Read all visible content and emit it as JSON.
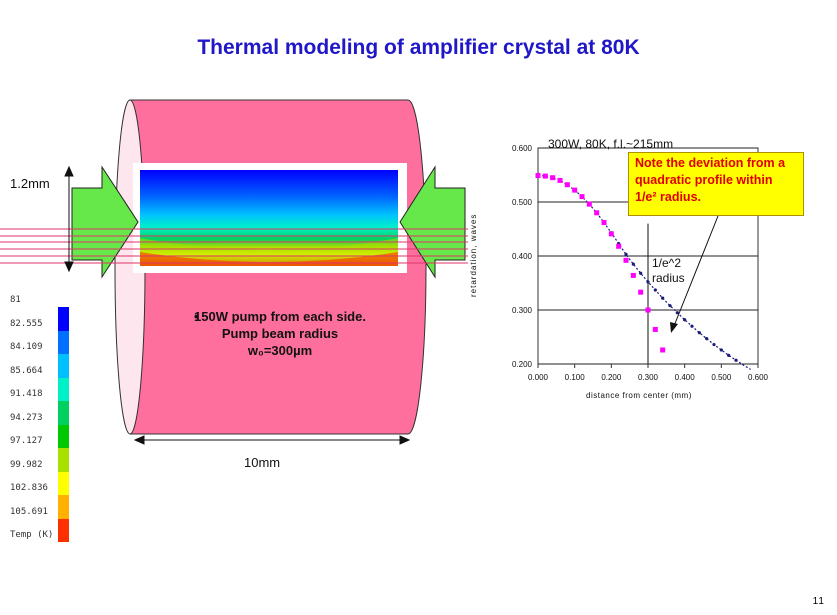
{
  "slide": {
    "title": "Thermal modeling of amplifier crystal at 80K",
    "page_number": "11"
  },
  "diagram": {
    "height_label": "1.2mm",
    "length_label": "10mm",
    "bullet": "150W pump from each side. Pump beam radius w₀=300µm",
    "colors": {
      "cylinder": "#ff6f9e",
      "cylinder_end": "#fde6ee",
      "pump": "#66e84a",
      "beam": "#e0336a"
    },
    "legend": {
      "labels": [
        "81",
        "82.555",
        "84.109",
        "85.664",
        "91.418",
        "94.273",
        "97.127",
        "99.982",
        "102.836",
        "105.691",
        "Temp (K)"
      ],
      "colors": [
        "#0000ff",
        "#0070ff",
        "#00bfff",
        "#00f0c8",
        "#00d060",
        "#00c800",
        "#a8e000",
        "#ffff00",
        "#ffb000",
        "#ff3000"
      ]
    }
  },
  "chart_data": {
    "type": "scatter",
    "title": "300W, 80K, f.l.~215mm",
    "xlabel": "distance from center (mm)",
    "ylabel": "retardation, waves",
    "xlim": [
      0.0,
      0.6
    ],
    "ylim": [
      0.2,
      0.6
    ],
    "x_ticks": [
      "0.000",
      "0.100",
      "0.200",
      "0.300",
      "0.400",
      "0.500",
      "0.600"
    ],
    "y_ticks": [
      "0.200",
      "0.300",
      "0.400",
      "0.500",
      "0.600"
    ],
    "grid": "horizontal",
    "series": [
      {
        "style": "dark blue dotted line",
        "color": "#1a1a7a",
        "x": [
          0.0,
          0.02,
          0.04,
          0.06,
          0.08,
          0.1,
          0.12,
          0.14,
          0.16,
          0.18,
          0.2,
          0.22,
          0.24,
          0.26,
          0.28,
          0.3,
          0.32,
          0.34,
          0.36,
          0.38,
          0.4,
          0.42,
          0.44,
          0.46,
          0.48,
          0.5,
          0.52,
          0.54,
          0.56,
          0.58
        ],
        "values": [
          0.549,
          0.548,
          0.545,
          0.54,
          0.532,
          0.522,
          0.51,
          0.496,
          0.48,
          0.462,
          0.443,
          0.423,
          0.403,
          0.385,
          0.368,
          0.352,
          0.337,
          0.322,
          0.308,
          0.295,
          0.282,
          0.27,
          0.258,
          0.247,
          0.236,
          0.226,
          0.216,
          0.207,
          0.198,
          0.19
        ]
      },
      {
        "style": "magenta square markers",
        "color": "#ff00ff",
        "x": [
          0.0,
          0.02,
          0.04,
          0.06,
          0.08,
          0.1,
          0.12,
          0.14,
          0.16,
          0.18,
          0.2,
          0.22,
          0.24,
          0.26,
          0.28,
          0.3,
          0.32,
          0.34
        ],
        "values": [
          0.549,
          0.548,
          0.545,
          0.54,
          0.532,
          0.522,
          0.51,
          0.496,
          0.48,
          0.462,
          0.441,
          0.418,
          0.392,
          0.364,
          0.333,
          0.3,
          0.264,
          0.226
        ]
      }
    ],
    "annotations": {
      "radius_label": "1/e^2 radius",
      "note": "Note the deviation from a quadratic profile within 1/e² radius.",
      "radius_x": 0.3
    }
  }
}
